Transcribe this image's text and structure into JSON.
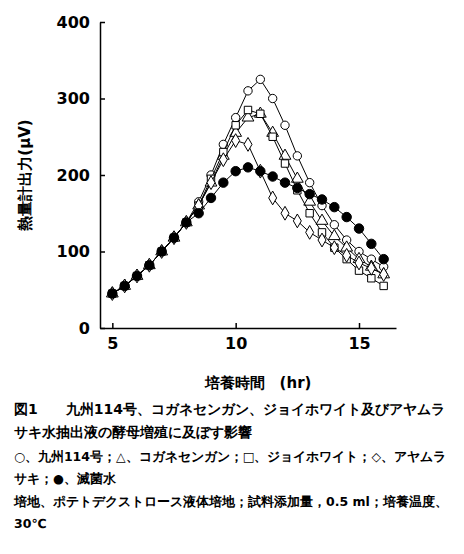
{
  "chart_data": {
    "type": "line",
    "title": "図1　　九州114号、コガネセンガン、ジョイホワイト及びアヤムラサキ水抽出液の酵母増殖に及ぼす影響",
    "x_label": "培養時間　(hr)",
    "y_label": "熱量計出力(μV)",
    "x": [
      5,
      5.5,
      6,
      6.5,
      7,
      7.5,
      8,
      8.5,
      9,
      9.5,
      10,
      10.5,
      11,
      11.5,
      12,
      12.5,
      13,
      13.5,
      14,
      14.5,
      15,
      15.5,
      16
    ],
    "xlim": [
      4.5,
      16.5
    ],
    "xticks": [
      5,
      10,
      15
    ],
    "ylim": [
      0,
      400
    ],
    "yticks": [
      0,
      100,
      200,
      300,
      400
    ],
    "series": [
      {
        "name": "○、九州114号",
        "color": "#000000",
        "marker": "circle",
        "values": [
          45,
          55,
          68,
          82,
          100,
          118,
          138,
          165,
          200,
          240,
          275,
          310,
          325,
          300,
          265,
          225,
          190,
          160,
          135,
          115,
          100,
          90,
          80
        ]
      },
      {
        "name": "△、コガネセンガン",
        "color": "#000000",
        "marker": "triangle",
        "values": [
          45,
          55,
          68,
          82,
          100,
          118,
          138,
          160,
          190,
          225,
          255,
          275,
          280,
          255,
          225,
          195,
          165,
          140,
          120,
          105,
          90,
          80,
          70
        ]
      },
      {
        "name": "□、ジョイホワイト",
        "color": "#000000",
        "marker": "square",
        "values": [
          45,
          55,
          68,
          82,
          100,
          118,
          138,
          160,
          195,
          230,
          265,
          285,
          280,
          250,
          215,
          180,
          150,
          125,
          105,
          90,
          75,
          65,
          55
        ]
      },
      {
        "name": "◇、アヤムラサキ",
        "color": "#000000",
        "marker": "diamond",
        "values": [
          45,
          55,
          68,
          82,
          100,
          118,
          138,
          160,
          190,
          220,
          245,
          240,
          205,
          170,
          150,
          140,
          125,
          115,
          105,
          95,
          85,
          78,
          70
        ]
      },
      {
        "name": "●、滅菌水",
        "color": "#000000",
        "marker": "filled-circle",
        "values": [
          45,
          55,
          68,
          82,
          100,
          118,
          138,
          150,
          170,
          190,
          205,
          210,
          205,
          198,
          190,
          183,
          175,
          168,
          158,
          145,
          130,
          110,
          90
        ]
      }
    ],
    "legend_separator": "；",
    "notes": "培地、ポテトデクストロース液体培地；試料添加量，0.5 ml；培養温度、30℃"
  }
}
